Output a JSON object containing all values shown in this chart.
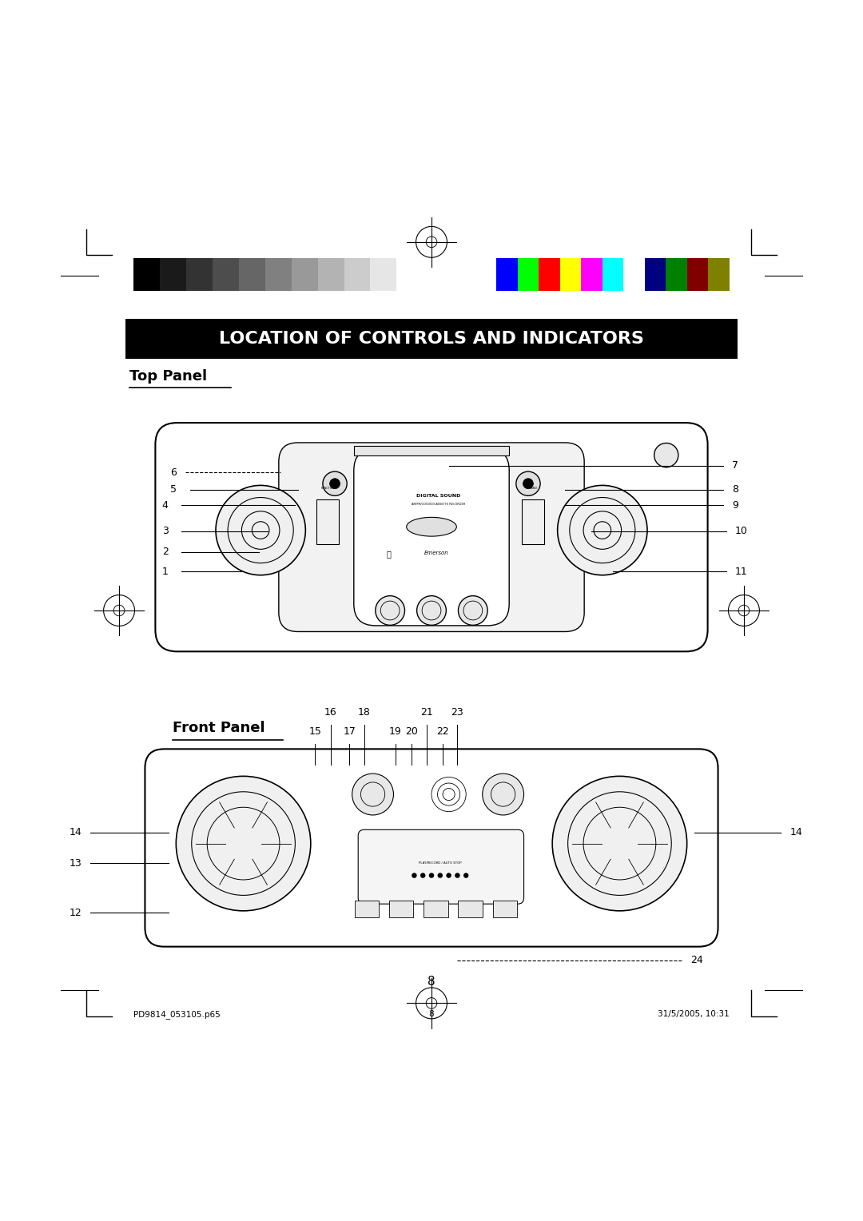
{
  "title": "LOCATION OF CONTROLS AND INDICATORS",
  "top_panel_label": "Top Panel",
  "front_panel_label": "Front Panel",
  "page_number": "8",
  "footer_left": "PD9814_053105.p65",
  "footer_center": "8",
  "footer_right": "31/5/2005, 10:31",
  "bg_color": "#ffffff",
  "title_bg": "#000000",
  "title_fg": "#ffffff",
  "grayscale_bars": [
    "#000000",
    "#1a1a1a",
    "#333333",
    "#4d4d4d",
    "#666666",
    "#808080",
    "#999999",
    "#b3b3b3",
    "#cccccc",
    "#e6e6e6",
    "#ffffff"
  ],
  "color_bars": [
    "#0000ff",
    "#00ff00",
    "#ff0000",
    "#ffff00",
    "#ff00ff",
    "#00ffff",
    "#ffffff",
    "#000080",
    "#008000",
    "#800000",
    "#808000"
  ]
}
